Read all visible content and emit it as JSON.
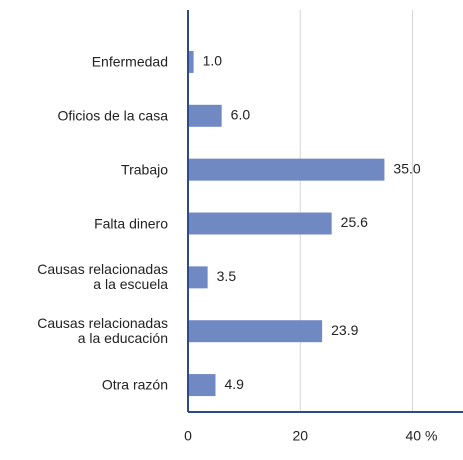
{
  "chart_data": {
    "type": "bar",
    "orientation": "horizontal",
    "categories": [
      "Enfermedad",
      "Oficios de la casa",
      "Trabajo",
      "Falta dinero",
      "Causas relacionadas\na la escuela",
      "Causas relacionadas\na la educación",
      "Otra razón"
    ],
    "values": [
      1.0,
      6.0,
      35.0,
      25.6,
      3.5,
      23.9,
      4.9
    ],
    "value_labels": [
      "1.0",
      "6.0",
      "35.0",
      "25.6",
      "3.5",
      "23.9",
      "4.9"
    ],
    "color": "#7189c2",
    "xlim": [
      0,
      49
    ],
    "xticks": [
      0,
      20,
      {
        "value": 40,
        "label": "40 %"
      }
    ],
    "grid": true
  }
}
